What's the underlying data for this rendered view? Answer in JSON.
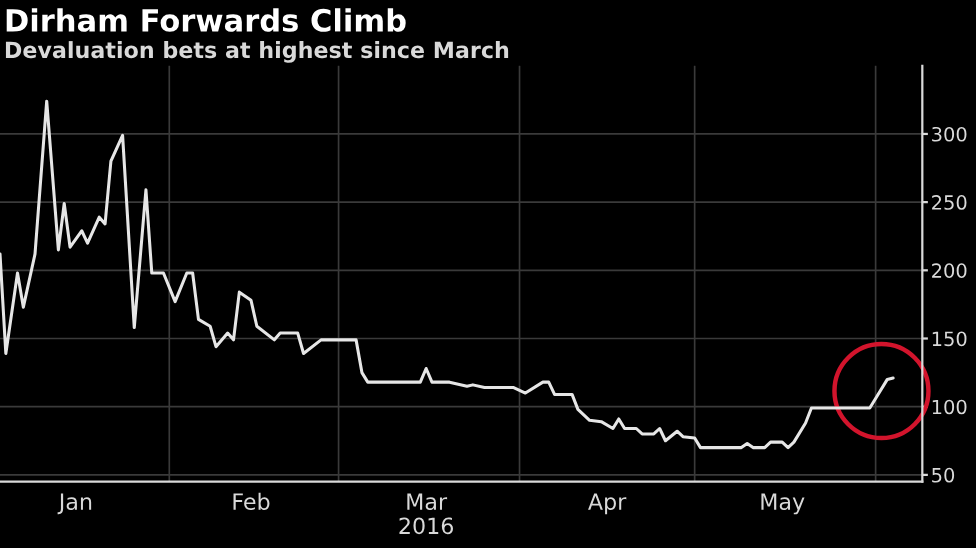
{
  "chart_data": {
    "type": "line",
    "title": "Dirham Forwards Climb",
    "subtitle": "Devaluation bets at highest since March",
    "xlabel": "2016",
    "x": [
      "2016-01-03",
      "2016-01-04",
      "2016-01-06",
      "2016-01-07",
      "2016-01-09",
      "2016-01-11",
      "2016-01-13",
      "2016-01-14",
      "2016-01-15",
      "2016-01-17",
      "2016-01-18",
      "2016-01-20",
      "2016-01-21",
      "2016-01-22",
      "2016-01-24",
      "2016-01-26",
      "2016-01-28",
      "2016-01-29",
      "2016-01-31",
      "2016-02-02",
      "2016-02-04",
      "2016-02-05",
      "2016-02-06",
      "2016-02-08",
      "2016-02-09",
      "2016-02-11",
      "2016-02-12",
      "2016-02-13",
      "2016-02-15",
      "2016-02-16",
      "2016-02-19",
      "2016-02-20",
      "2016-02-23",
      "2016-02-24",
      "2016-02-27",
      "2016-03-04",
      "2016-03-05",
      "2016-03-06",
      "2016-03-15",
      "2016-03-16",
      "2016-03-17",
      "2016-03-20",
      "2016-03-23",
      "2016-03-24",
      "2016-03-26",
      "2016-03-31",
      "2016-04-02",
      "2016-04-05",
      "2016-04-06",
      "2016-04-07",
      "2016-04-10",
      "2016-04-11",
      "2016-04-13",
      "2016-04-15",
      "2016-04-17",
      "2016-04-18",
      "2016-04-19",
      "2016-04-21",
      "2016-04-22",
      "2016-04-24",
      "2016-04-25",
      "2016-04-26",
      "2016-04-28",
      "2016-04-29",
      "2016-05-01",
      "2016-05-02",
      "2016-05-09",
      "2016-05-10",
      "2016-05-11",
      "2016-05-13",
      "2016-05-14",
      "2016-05-16",
      "2016-05-17",
      "2016-05-18",
      "2016-05-20",
      "2016-05-21",
      "2016-05-31",
      "2016-06-01",
      "2016-06-03",
      "2016-06-04"
    ],
    "series": [
      {
        "color": "#e6e6e6",
        "values": [
          212,
          139,
          198,
          173,
          212,
          324,
          215,
          249,
          217,
          229,
          220,
          239,
          234,
          280,
          299,
          158,
          259,
          198,
          198,
          177,
          198,
          198,
          164,
          159,
          144,
          154,
          149,
          184,
          178,
          159,
          149,
          154,
          154,
          139,
          149,
          149,
          125,
          118,
          118,
          128,
          118,
          118,
          115,
          116,
          114,
          114,
          110,
          118,
          118,
          109,
          109,
          98,
          90,
          89,
          84,
          91,
          84,
          84,
          80,
          80,
          84,
          75,
          82,
          78,
          77,
          70,
          70,
          73,
          70,
          70,
          74,
          74,
          70,
          74,
          88,
          99,
          99,
          106,
          120,
          121
        ]
      }
    ],
    "xlim": [
      "2016-01-03",
      "2016-06-09"
    ],
    "xticks": [
      {
        "value": "2016-01-16",
        "label": "Jan"
      },
      {
        "value": "2016-02-01",
        "label": null
      },
      {
        "value": "2016-02-15",
        "label": "Feb"
      },
      {
        "value": "2016-03-01",
        "label": null
      },
      {
        "value": "2016-03-16",
        "label": "Mar"
      },
      {
        "value": "2016-04-01",
        "label": null
      },
      {
        "value": "2016-04-16",
        "label": "Apr"
      },
      {
        "value": "2016-05-01",
        "label": null
      },
      {
        "value": "2016-05-16",
        "label": "May"
      },
      {
        "value": "2016-06-01",
        "label": null
      }
    ],
    "ylim": [
      45,
      350
    ],
    "yticks": [
      50,
      100,
      150,
      200,
      250,
      300
    ],
    "grid": true,
    "marker": "none",
    "line_style": "solid"
  }
}
